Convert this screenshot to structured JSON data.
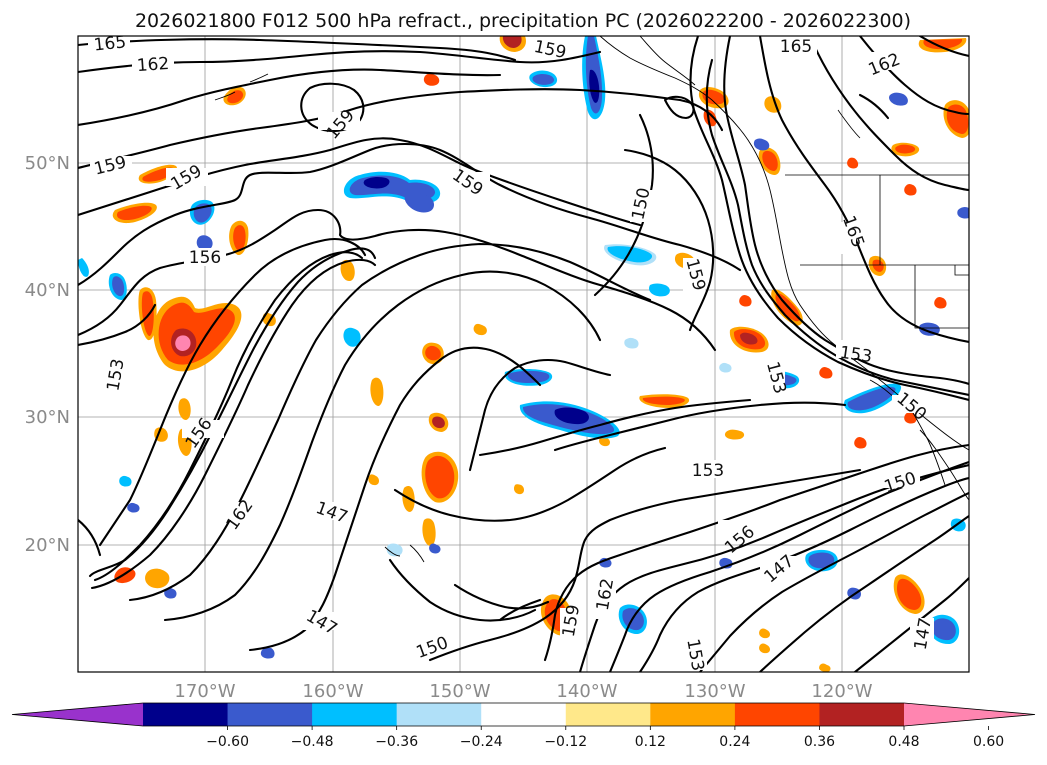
{
  "title": "2026021800 F012 500 hPa refract., precipitation PC (2026022200 - 2026022300)",
  "lat_labels": [
    "50°N",
    "40°N",
    "30°N",
    "20°N"
  ],
  "lon_labels": [
    "170°W",
    "160°W",
    "150°W",
    "140°W",
    "130°W",
    "120°W"
  ],
  "colorbar": {
    "ticks": [
      "−0.60",
      "−0.48",
      "−0.36",
      "−0.24",
      "−0.12",
      "0.12",
      "0.24",
      "0.36",
      "0.48",
      "0.60"
    ],
    "colors": [
      "#9932CC",
      "#00008B",
      "#3A5ACD",
      "#00BFFF",
      "#B0E0F8",
      "#FFFFFF",
      "#FFE88A",
      "#FFA500",
      "#FF4500",
      "#B22222",
      "#FF85B0"
    ]
  },
  "contour_labels": [
    "165",
    "162",
    "159",
    "159",
    "156",
    "153",
    "150",
    "147",
    "165",
    "162",
    "159",
    "156",
    "153",
    "150",
    "147",
    "162",
    "159",
    "153",
    "147",
    "165",
    "162",
    "150",
    "147",
    "159",
    "159",
    "156",
    "153",
    "159",
    "153",
    "150"
  ],
  "colors": {
    "positive": "#FF4500",
    "negative": "#3A5ACD",
    "contour": "#000000",
    "grid": "#9a9a9a"
  }
}
